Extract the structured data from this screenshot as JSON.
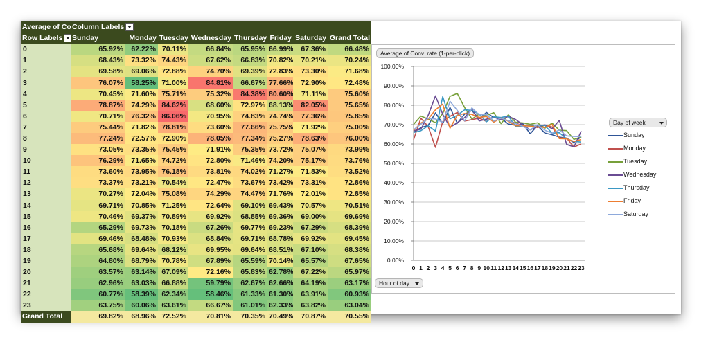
{
  "pivot": {
    "title_cell": "Average of Co",
    "column_labels_cell": "Column Labels",
    "row_labels_cell": "Row Labels",
    "columns": [
      "Sunday",
      "Monday",
      "Tuesday",
      "Wednesday",
      "Thursday",
      "Friday",
      "Saturday",
      "Grand Total"
    ],
    "rows": [
      {
        "label": "0",
        "values": [
          "65.92%",
          "62.22%",
          "70.11%",
          "66.84%",
          "65.95%",
          "66.99%",
          "67.36%",
          "66.48%"
        ]
      },
      {
        "label": "1",
        "values": [
          "68.43%",
          "73.32%",
          "74.43%",
          "67.62%",
          "66.83%",
          "70.82%",
          "70.21%",
          "70.24%"
        ]
      },
      {
        "label": "2",
        "values": [
          "69.58%",
          "69.06%",
          "72.88%",
          "74.70%",
          "69.39%",
          "72.83%",
          "73.30%",
          "71.68%"
        ]
      },
      {
        "label": "3",
        "values": [
          "76.07%",
          "58.25%",
          "71.00%",
          "84.81%",
          "66.67%",
          "77.66%",
          "72.90%",
          "72.48%"
        ]
      },
      {
        "label": "4",
        "values": [
          "70.45%",
          "71.60%",
          "75.71%",
          "75.32%",
          "84.38%",
          "80.60%",
          "71.11%",
          "75.60%"
        ]
      },
      {
        "label": "5",
        "values": [
          "78.87%",
          "74.29%",
          "84.62%",
          "68.60%",
          "72.97%",
          "68.13%",
          "82.05%",
          "75.65%"
        ]
      },
      {
        "label": "6",
        "values": [
          "70.71%",
          "76.32%",
          "86.06%",
          "70.95%",
          "74.83%",
          "74.74%",
          "77.36%",
          "75.85%"
        ]
      },
      {
        "label": "7",
        "values": [
          "75.44%",
          "71.82%",
          "78.81%",
          "73.60%",
          "77.66%",
          "75.75%",
          "71.92%",
          "75.00%"
        ]
      },
      {
        "label": "8",
        "values": [
          "77.24%",
          "72.57%",
          "72.90%",
          "78.05%",
          "77.34%",
          "75.27%",
          "78.63%",
          "76.00%"
        ]
      },
      {
        "label": "9",
        "values": [
          "73.05%",
          "73.35%",
          "75.45%",
          "71.91%",
          "75.35%",
          "73.72%",
          "75.07%",
          "73.99%"
        ]
      },
      {
        "label": "10",
        "values": [
          "76.29%",
          "71.65%",
          "74.72%",
          "72.80%",
          "71.46%",
          "74.20%",
          "75.17%",
          "73.76%"
        ]
      },
      {
        "label": "11",
        "values": [
          "73.60%",
          "73.95%",
          "76.18%",
          "73.81%",
          "74.02%",
          "71.27%",
          "71.83%",
          "73.52%"
        ]
      },
      {
        "label": "12",
        "values": [
          "73.37%",
          "73.21%",
          "70.54%",
          "72.47%",
          "73.67%",
          "73.42%",
          "73.31%",
          "72.86%"
        ]
      },
      {
        "label": "13",
        "values": [
          "70.27%",
          "72.04%",
          "75.08%",
          "74.29%",
          "74.47%",
          "71.76%",
          "72.01%",
          "72.85%"
        ]
      },
      {
        "label": "14",
        "values": [
          "69.71%",
          "70.85%",
          "71.25%",
          "72.64%",
          "69.10%",
          "69.43%",
          "70.57%",
          "70.51%"
        ]
      },
      {
        "label": "15",
        "values": [
          "70.46%",
          "69.37%",
          "70.89%",
          "69.92%",
          "68.85%",
          "69.36%",
          "69.00%",
          "69.69%"
        ]
      },
      {
        "label": "16",
        "values": [
          "65.29%",
          "69.73%",
          "70.18%",
          "67.26%",
          "69.77%",
          "69.23%",
          "67.29%",
          "68.39%"
        ]
      },
      {
        "label": "17",
        "values": [
          "69.46%",
          "68.48%",
          "70.93%",
          "68.84%",
          "69.71%",
          "68.78%",
          "69.92%",
          "69.45%"
        ]
      },
      {
        "label": "18",
        "values": [
          "65.68%",
          "69.64%",
          "68.12%",
          "69.95%",
          "69.64%",
          "68.51%",
          "67.10%",
          "68.38%"
        ]
      },
      {
        "label": "19",
        "values": [
          "64.80%",
          "68.79%",
          "70.78%",
          "67.89%",
          "65.59%",
          "70.14%",
          "65.57%",
          "67.65%"
        ]
      },
      {
        "label": "20",
        "values": [
          "63.57%",
          "63.14%",
          "67.09%",
          "72.16%",
          "65.83%",
          "62.78%",
          "67.22%",
          "65.97%"
        ]
      },
      {
        "label": "21",
        "values": [
          "62.96%",
          "63.03%",
          "66.88%",
          "59.79%",
          "62.67%",
          "62.66%",
          "64.19%",
          "63.17%"
        ]
      },
      {
        "label": "22",
        "values": [
          "60.77%",
          "58.39%",
          "62.34%",
          "58.46%",
          "61.33%",
          "61.30%",
          "63.91%",
          "60.93%"
        ]
      },
      {
        "label": "23",
        "values": [
          "63.75%",
          "60.06%",
          "63.61%",
          "66.67%",
          "61.01%",
          "62.33%",
          "63.82%",
          "63.04%"
        ]
      }
    ],
    "grand_total": {
      "label": "Grand Total",
      "values": [
        "69.82%",
        "68.96%",
        "72.52%",
        "70.81%",
        "70.35%",
        "70.49%",
        "70.87%",
        "70.55%"
      ]
    }
  },
  "chart": {
    "title_button": "Average of Conv. rate (1-per-click)",
    "axis_button": "Hour of day",
    "legend_button": "Day of week"
  },
  "chart_data": {
    "type": "line",
    "x": [
      "0",
      "1",
      "2",
      "3",
      "4",
      "5",
      "6",
      "7",
      "8",
      "9",
      "10",
      "11",
      "12",
      "13",
      "14",
      "15",
      "16",
      "17",
      "18",
      "19",
      "20",
      "21",
      "22",
      "23"
    ],
    "ylim": [
      0,
      100
    ],
    "yticks": [
      "0.00%",
      "10.00%",
      "20.00%",
      "30.00%",
      "40.00%",
      "50.00%",
      "60.00%",
      "70.00%",
      "80.00%",
      "90.00%",
      "100.00%"
    ],
    "grid": true,
    "legend": "right",
    "series": [
      {
        "name": "Sunday",
        "color": "#2f5597",
        "values": [
          65.92,
          68.43,
          69.58,
          76.07,
          70.45,
          78.87,
          70.71,
          75.44,
          77.24,
          73.05,
          76.29,
          73.6,
          73.37,
          70.27,
          69.71,
          70.46,
          65.29,
          69.46,
          65.68,
          64.8,
          63.57,
          62.96,
          60.77,
          63.75
        ]
      },
      {
        "name": "Monday",
        "color": "#c0504d",
        "values": [
          62.22,
          73.32,
          69.06,
          58.25,
          71.6,
          74.29,
          76.32,
          71.82,
          72.57,
          73.35,
          71.65,
          73.95,
          73.21,
          72.04,
          70.85,
          69.37,
          69.73,
          68.48,
          69.64,
          68.79,
          63.14,
          63.03,
          58.39,
          60.06
        ]
      },
      {
        "name": "Tuesday",
        "color": "#77a03a",
        "values": [
          70.11,
          74.43,
          72.88,
          71.0,
          75.71,
          84.62,
          86.06,
          78.81,
          72.9,
          75.45,
          74.72,
          76.18,
          70.54,
          75.08,
          71.25,
          70.89,
          70.18,
          70.93,
          68.12,
          70.78,
          67.09,
          66.88,
          62.34,
          63.61
        ]
      },
      {
        "name": "Wednesday",
        "color": "#6a4c93",
        "values": [
          66.84,
          67.62,
          74.7,
          84.81,
          75.32,
          68.6,
          70.95,
          73.6,
          78.05,
          71.91,
          72.8,
          73.81,
          72.47,
          74.29,
          72.64,
          69.92,
          67.26,
          68.84,
          69.95,
          67.89,
          72.16,
          59.79,
          58.46,
          66.67
        ]
      },
      {
        "name": "Thursday",
        "color": "#3b98c4",
        "values": [
          65.95,
          66.83,
          69.39,
          66.67,
          84.38,
          72.97,
          74.83,
          77.66,
          77.34,
          75.35,
          71.46,
          74.02,
          73.67,
          74.47,
          69.1,
          68.85,
          69.77,
          69.71,
          69.64,
          65.59,
          65.83,
          62.67,
          61.33,
          61.01
        ]
      },
      {
        "name": "Friday",
        "color": "#ed7d31",
        "values": [
          66.99,
          70.82,
          72.83,
          77.66,
          80.6,
          68.13,
          74.74,
          75.75,
          75.27,
          73.72,
          74.2,
          71.27,
          73.42,
          71.76,
          69.43,
          69.36,
          69.23,
          68.78,
          68.51,
          70.14,
          62.78,
          62.66,
          61.3,
          62.33
        ]
      },
      {
        "name": "Saturday",
        "color": "#8ea9db",
        "values": [
          67.36,
          70.21,
          73.3,
          72.9,
          71.11,
          82.05,
          77.36,
          71.92,
          78.63,
          75.07,
          75.17,
          71.83,
          73.31,
          72.01,
          70.57,
          69.0,
          67.29,
          69.92,
          67.1,
          65.57,
          67.22,
          64.19,
          63.91,
          63.82
        ]
      }
    ]
  }
}
